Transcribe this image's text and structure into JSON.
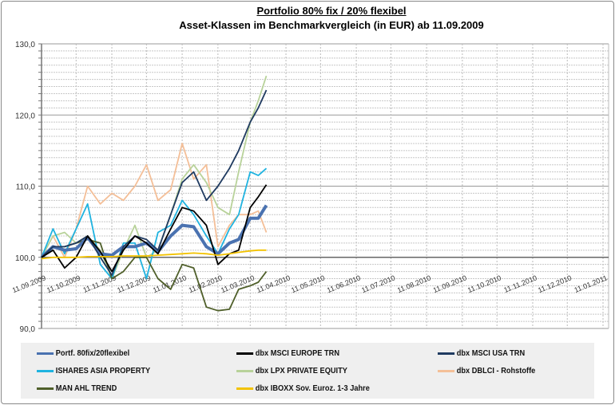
{
  "title": "Portfolio 80% fix / 20% flexibel",
  "subtitle": "Asset-Klassen im Benchmarkvergleich (in EUR) ab 11.09.2009",
  "chart_data": {
    "type": "line",
    "title": "Portfolio 80% fix / 20% flexibel",
    "subtitle": "Asset-Klassen im Benchmarkvergleich (in EUR) ab 11.09.2009",
    "ylim": [
      90,
      130
    ],
    "xlim": [
      "2009-09-11",
      "2011-01-11"
    ],
    "y_ticks": [
      "90,0",
      "100,0",
      "110,0",
      "120,0",
      "130,0"
    ],
    "x_ticks": [
      "11.09.2009",
      "11.10.2009",
      "11.11.2009",
      "11.12.2009",
      "11.01.2010",
      "11.02.2010",
      "11.03.2010",
      "11.04.2010",
      "11.05.2010",
      "11.06.2010",
      "11.07.2010",
      "11.08.2010",
      "11.09.2010",
      "11.10.2010",
      "11.11.2010",
      "11.12.2010",
      "11.01.2011"
    ],
    "grid": true,
    "legend_placement": "bottom",
    "x": [
      "2009-09-11",
      "2009-09-21",
      "2009-10-01",
      "2009-10-11",
      "2009-10-21",
      "2009-11-01",
      "2009-11-11",
      "2009-11-21",
      "2009-12-01",
      "2009-12-11",
      "2009-12-21",
      "2010-01-01",
      "2010-01-11",
      "2010-01-21",
      "2010-02-01",
      "2010-02-11",
      "2010-02-21",
      "2010-03-01",
      "2010-03-11",
      "2010-03-18",
      "2010-03-25"
    ],
    "series": [
      {
        "name": "Portf. 80fix/20flexibel",
        "color": "#4a72b0",
        "values": [
          100,
          101.5,
          101,
          101.2,
          102.8,
          100.5,
          100.3,
          101.5,
          101.5,
          102,
          100.8,
          103,
          104.5,
          104.3,
          101.5,
          100.5,
          102,
          102.5,
          105.5,
          105.5,
          107.3
        ]
      },
      {
        "name": "dbx MSCI EUROPE TRN",
        "color": "#000000",
        "values": [
          100,
          101,
          98.5,
          100,
          103,
          100.8,
          98,
          101,
          103,
          102,
          100.5,
          104,
          107,
          106.5,
          104.5,
          99,
          100.5,
          101,
          107,
          108.5,
          110.2
        ]
      },
      {
        "name": "dbx MSCI USA TRN",
        "color": "#1f3a60",
        "values": [
          100,
          101.5,
          101.5,
          102,
          103,
          100,
          97.5,
          101.5,
          103,
          102.5,
          101,
          106,
          110.5,
          112,
          108,
          110,
          112.5,
          115,
          119,
          121,
          123.5
        ]
      },
      {
        "name": "ISHARES ASIA PROPERTY",
        "color": "#1fb3e0",
        "values": [
          100,
          104,
          100.5,
          104,
          107.5,
          99,
          97,
          102,
          102,
          97,
          103.5,
          104.5,
          108,
          106,
          103,
          100.5,
          104,
          106,
          112,
          111.5,
          112.5
        ]
      },
      {
        "name": "dbx LPX PRIVATE EQUITY",
        "color": "#b8d29a",
        "values": [
          100,
          103,
          103.5,
          102,
          103,
          101,
          97,
          101,
          104.5,
          100,
          101,
          106,
          111,
          113,
          110.5,
          107,
          106,
          112,
          119,
          122,
          125.5
        ]
      },
      {
        "name": "dbx DBLCI - Rohstoffe",
        "color": "#f4bf98",
        "values": [
          100,
          103,
          100,
          104,
          110,
          107.5,
          109,
          108,
          110,
          113,
          108,
          109.5,
          116,
          111,
          113,
          101.5,
          104.5,
          106,
          106,
          106.5,
          103.5
        ]
      },
      {
        "name": "MAN AHL TREND",
        "color": "#4f5f2a",
        "values": [
          100,
          101.5,
          101.5,
          102,
          102.5,
          102,
          97,
          98,
          100,
          100,
          97,
          95.5,
          99,
          98.5,
          93,
          92.5,
          92.7,
          95.5,
          96,
          96.5,
          98
        ]
      },
      {
        "name": "dbx IBOXX Sov. Euroz. 1-3 Jahre",
        "color": "#f2c200",
        "values": [
          99.8,
          100,
          100,
          100,
          100.1,
          100.1,
          100.1,
          100.2,
          100.2,
          100.2,
          100.3,
          100.4,
          100.5,
          100.6,
          100.5,
          100.3,
          100.5,
          100.7,
          100.9,
          101,
          101
        ]
      }
    ]
  }
}
